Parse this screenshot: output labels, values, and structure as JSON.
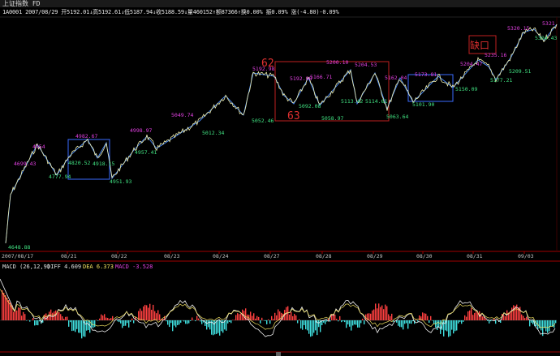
{
  "window": {
    "title": "上证指数 FD"
  },
  "info_bar": {
    "text": "1A0001 2007/08/29 开5192.01↓高5192.61↓低5187.94↓收5188.59↓量460152↑额87366↑换0.00% 振0.09% 涨(-4.80)-0.09%"
  },
  "chart_data": {
    "type": "line",
    "x_axis": {
      "start_label": "2007/08/17",
      "tick_labels": [
        "08/21",
        "08/22",
        "08/23",
        "08/24",
        "08/27",
        "08/28",
        "08/29",
        "08/30",
        "08/31",
        "09/03"
      ]
    },
    "price_annotations": {
      "magenta": [
        "4699.43",
        "4954",
        "4982.67",
        "4998.97",
        "5049.74",
        "5192.98",
        "5192.98",
        "5166.71",
        "5200.10",
        "5204.53",
        "5162.04",
        "5173.81",
        "5204.47",
        "5235.16",
        "5320.15",
        "5321"
      ],
      "green": [
        "4648.88",
        "4777.94",
        "4820.52",
        "4918.15",
        "4951.93",
        "4957.41",
        "5012.34",
        "5052.46",
        "5092.08",
        "5058.97",
        "5113.42",
        "5114.61",
        "5063.64",
        "5101.90",
        "5150.09",
        "5177.21",
        "5209.51",
        "5304.43"
      ]
    },
    "wave_labels": [
      "62",
      "63"
    ],
    "gap_label": "缺口",
    "colors": {
      "price_line": "#f0f0b0",
      "wave_line": "#4a8cff",
      "rect_blue": "#3a6cff",
      "rect_red": "#c02020",
      "magenta": "#e040e0",
      "green": "#40e080",
      "grid_red": "#a00000",
      "macd_pos": "#ff4040",
      "macd_neg": "#40e0e0",
      "diff_line": "#f0f0f0",
      "dea_line": "#f0e060"
    },
    "macd": {
      "label": "MACD (26,12,9)",
      "diff_text": "DIFF 4.609",
      "dea_text": "DEA 6.373",
      "macd_text": "MACD -3.528"
    }
  }
}
